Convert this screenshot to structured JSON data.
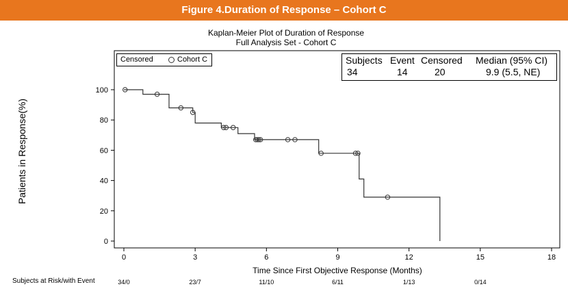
{
  "banner": {
    "title": "Figure 4.Duration of Response – Cohort C"
  },
  "chart_data": {
    "type": "line",
    "title": "Kaplan-Meier Plot of Duration of Response",
    "subtitle": "Full Analysis Set - Cohort C",
    "xlabel": "Time Since First Objective Response (Months)",
    "ylabel": "Patients in Response(%)",
    "xlim": [
      0,
      18
    ],
    "ylim": [
      0,
      100
    ],
    "xticks": [
      0,
      3,
      6,
      9,
      12,
      15,
      18
    ],
    "yticks": [
      0,
      20,
      40,
      60,
      80,
      100
    ],
    "grid": false,
    "legend": {
      "placement": "top-left",
      "title": "Censored",
      "entries": [
        "Cohort C"
      ]
    },
    "series": [
      {
        "name": "Cohort C",
        "step": [
          [
            0,
            100
          ],
          [
            0.8,
            100
          ],
          [
            0.8,
            97
          ],
          [
            1.9,
            97
          ],
          [
            1.9,
            88
          ],
          [
            2.9,
            88
          ],
          [
            2.9,
            85
          ],
          [
            3.0,
            85
          ],
          [
            3.0,
            78
          ],
          [
            4.1,
            78
          ],
          [
            4.1,
            75
          ],
          [
            4.8,
            75
          ],
          [
            4.8,
            71
          ],
          [
            5.5,
            71
          ],
          [
            5.5,
            67
          ],
          [
            8.2,
            67
          ],
          [
            8.2,
            58
          ],
          [
            9.9,
            58
          ],
          [
            9.9,
            41
          ],
          [
            10.1,
            41
          ],
          [
            10.1,
            29
          ],
          [
            13.3,
            29
          ],
          [
            13.3,
            0
          ]
        ],
        "censored": [
          [
            0.05,
            100
          ],
          [
            1.4,
            97
          ],
          [
            2.4,
            88
          ],
          [
            2.9,
            85
          ],
          [
            4.2,
            75
          ],
          [
            4.3,
            75
          ],
          [
            4.6,
            75
          ],
          [
            5.55,
            67
          ],
          [
            5.62,
            67
          ],
          [
            5.68,
            67
          ],
          [
            5.75,
            67
          ],
          [
            6.9,
            67
          ],
          [
            7.2,
            67
          ],
          [
            8.3,
            58
          ],
          [
            9.75,
            58
          ],
          [
            9.85,
            58
          ],
          [
            11.1,
            29
          ]
        ]
      }
    ],
    "stats_table": {
      "headers": [
        "Subjects",
        "Event",
        "Censored",
        "Median (95% CI)"
      ],
      "values": [
        "34",
        "14",
        "20",
        "9.9 (5.5, NE)"
      ]
    },
    "risk_table": {
      "label": "Subjects at Risk/with Event",
      "values": [
        "34/0",
        "23/7",
        "11/10",
        "6/11",
        "1/13",
        "0/14"
      ]
    }
  }
}
